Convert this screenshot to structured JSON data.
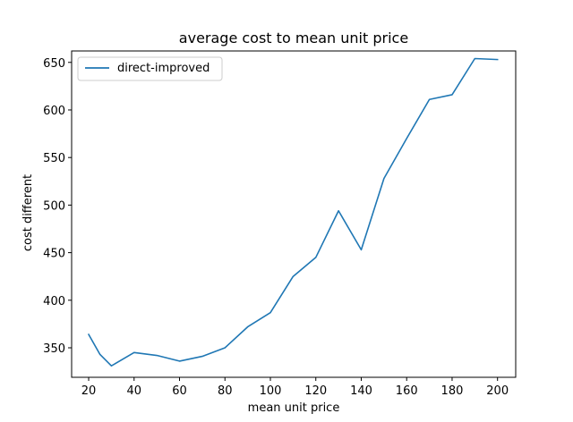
{
  "chart_data": {
    "type": "line",
    "title": "average cost to mean unit price",
    "xlabel": "mean unit price",
    "ylabel": "cost different",
    "xlim": [
      12.5,
      208
    ],
    "ylim": [
      319,
      662
    ],
    "xticks": [
      20,
      40,
      60,
      80,
      100,
      120,
      140,
      160,
      180,
      200
    ],
    "yticks": [
      350,
      400,
      450,
      500,
      550,
      600,
      650
    ],
    "grid": false,
    "legend_position": "top-left",
    "series": [
      {
        "name": "direct-improved",
        "color": "#1f77b4",
        "x": [
          20,
          25,
          30,
          40,
          50,
          60,
          70,
          80,
          90,
          100,
          110,
          120,
          130,
          140,
          150,
          160,
          170,
          180,
          190,
          200
        ],
        "y": [
          364,
          343,
          331,
          345,
          342,
          336,
          341,
          350,
          372,
          387,
          425,
          445,
          494,
          453,
          528,
          570,
          611,
          616,
          654,
          653
        ]
      }
    ]
  }
}
